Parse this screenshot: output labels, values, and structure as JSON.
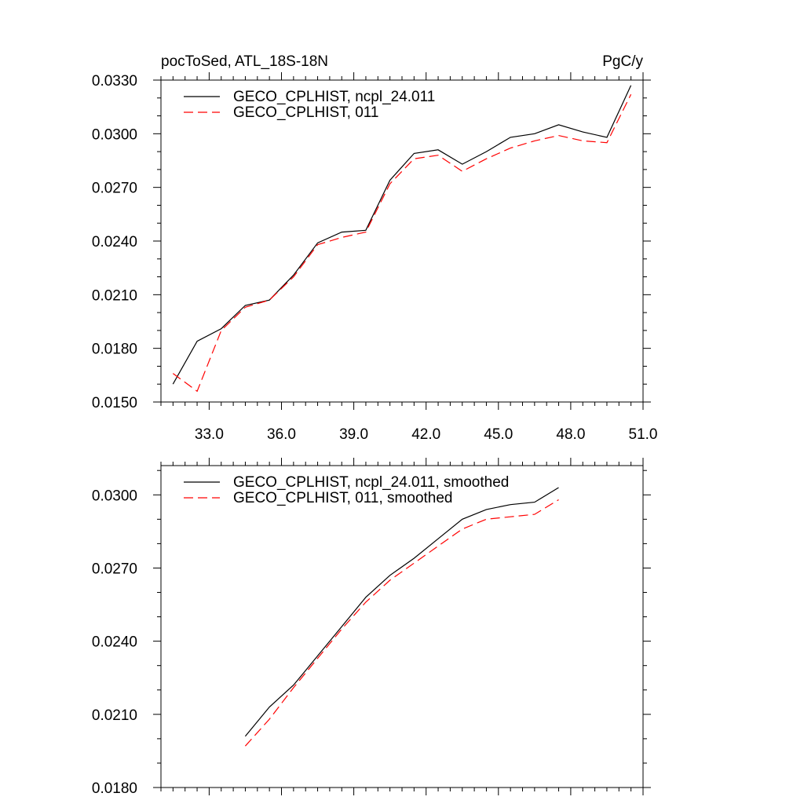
{
  "chart_data": [
    {
      "type": "line",
      "title_left": "pocToSed, ATL_18S-18N",
      "title_right": "PgC/y",
      "xlim": [
        31.0,
        51.0
      ],
      "ylim": [
        0.015,
        0.033
      ],
      "xticks": [
        33.0,
        36.0,
        39.0,
        42.0,
        45.0,
        48.0,
        51.0
      ],
      "xtick_labels": [
        "33.0",
        "36.0",
        "39.0",
        "42.0",
        "45.0",
        "48.0",
        "51.0"
      ],
      "yticks": [
        0.015,
        0.018,
        0.021,
        0.024,
        0.027,
        0.03,
        0.033
      ],
      "ytick_labels": [
        "0.0150",
        "0.0180",
        "0.0210",
        "0.0240",
        "0.0270",
        "0.0300",
        "0.0330"
      ],
      "legend": "top-left",
      "series": [
        {
          "name": "GECO_CPLHIST, ncpl_24.011",
          "color": "#000000",
          "dash": "solid",
          "x": [
            31.5,
            32.5,
            33.5,
            34.5,
            35.5,
            36.5,
            37.5,
            38.5,
            39.5,
            40.5,
            41.5,
            42.5,
            43.5,
            44.5,
            45.5,
            46.5,
            47.5,
            48.5,
            49.5,
            50.5
          ],
          "y": [
            0.016,
            0.0184,
            0.0191,
            0.0204,
            0.0207,
            0.0221,
            0.0239,
            0.0245,
            0.0246,
            0.0274,
            0.0289,
            0.0291,
            0.0283,
            0.029,
            0.0298,
            0.03,
            0.0305,
            0.0301,
            0.0298,
            0.0327
          ]
        },
        {
          "name": "GECO_CPLHIST, 011",
          "color": "#ff0000",
          "dash": "dashed",
          "x": [
            31.5,
            32.5,
            33.5,
            34.5,
            35.5,
            36.5,
            37.5,
            38.5,
            39.5,
            40.5,
            41.5,
            42.5,
            43.5,
            44.5,
            45.5,
            46.5,
            47.5,
            48.5,
            49.5,
            50.5
          ],
          "y": [
            0.0166,
            0.0156,
            0.019,
            0.0203,
            0.0207,
            0.022,
            0.0238,
            0.0242,
            0.0245,
            0.0272,
            0.0286,
            0.0288,
            0.0279,
            0.0286,
            0.0292,
            0.0296,
            0.0299,
            0.0296,
            0.0295,
            0.0322
          ]
        }
      ]
    },
    {
      "type": "line",
      "xlim": [
        31.0,
        51.0
      ],
      "ylim": [
        0.018,
        0.0312
      ],
      "xticks": [
        33.0,
        36.0,
        39.0,
        42.0,
        45.0,
        48.0,
        51.0
      ],
      "yticks": [
        0.018,
        0.021,
        0.024,
        0.027,
        0.03
      ],
      "ytick_labels": [
        "0.0180",
        "0.0210",
        "0.0240",
        "0.0270",
        "0.0300"
      ],
      "legend": "top-left",
      "series": [
        {
          "name": "GECO_CPLHIST, ncpl_24.011, smoothed",
          "color": "#000000",
          "dash": "solid",
          "x": [
            34.5,
            35.5,
            36.5,
            37.5,
            38.5,
            39.5,
            40.5,
            41.5,
            42.5,
            43.5,
            44.5,
            45.5,
            46.5,
            47.5
          ],
          "y": [
            0.0201,
            0.0213,
            0.0222,
            0.0234,
            0.0246,
            0.0258,
            0.0267,
            0.0274,
            0.0282,
            0.029,
            0.0294,
            0.0296,
            0.0297,
            0.0303
          ]
        },
        {
          "name": "GECO_CPLHIST, 011, smoothed",
          "color": "#ff0000",
          "dash": "dashed",
          "x": [
            34.5,
            35.5,
            36.5,
            37.5,
            38.5,
            39.5,
            40.5,
            41.5,
            42.5,
            43.5,
            44.5,
            45.5,
            46.5,
            47.5
          ],
          "y": [
            0.0197,
            0.0208,
            0.0221,
            0.0233,
            0.0245,
            0.0256,
            0.0265,
            0.0272,
            0.0279,
            0.0286,
            0.029,
            0.0291,
            0.0292,
            0.0298
          ]
        }
      ]
    }
  ]
}
